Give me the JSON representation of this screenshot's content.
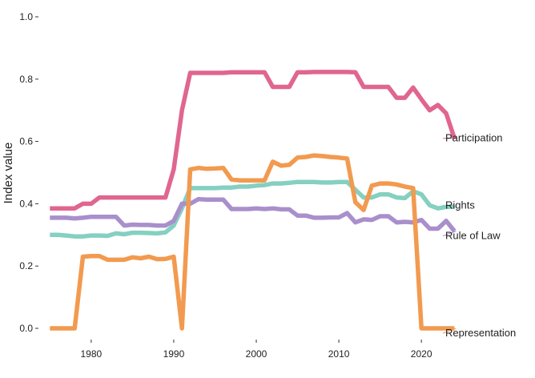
{
  "chart_data": {
    "type": "line",
    "title": "",
    "xlabel": "",
    "ylabel": "Index value",
    "xlim": [
      1974,
      2026
    ],
    "ylim": [
      0.0,
      1.0
    ],
    "x_ticks": [
      1980,
      1990,
      2000,
      2010,
      2020
    ],
    "y_ticks": [
      "0.0",
      "0.2",
      "0.4",
      "0.6",
      "0.8",
      "1.0"
    ],
    "grid": false,
    "legend": "direct labels at line ends (right)",
    "x": [
      1975,
      1976,
      1977,
      1978,
      1979,
      1980,
      1981,
      1982,
      1983,
      1984,
      1985,
      1986,
      1987,
      1988,
      1989,
      1990,
      1991,
      1992,
      1993,
      1994,
      1995,
      1996,
      1997,
      1998,
      1999,
      2000,
      2001,
      2002,
      2003,
      2004,
      2005,
      2006,
      2007,
      2008,
      2009,
      2010,
      2011,
      2012,
      2013,
      2014,
      2015,
      2016,
      2017,
      2018,
      2019,
      2020,
      2021,
      2022,
      2023,
      2024
    ],
    "series": [
      {
        "name": "Participation",
        "color": "#e0668f",
        "values": [
          0.385,
          0.385,
          0.385,
          0.385,
          0.4,
          0.4,
          0.42,
          0.42,
          0.42,
          0.42,
          0.42,
          0.42,
          0.42,
          0.42,
          0.42,
          0.51,
          0.7,
          0.82,
          0.82,
          0.82,
          0.82,
          0.82,
          0.822,
          0.822,
          0.822,
          0.822,
          0.822,
          0.775,
          0.775,
          0.775,
          0.822,
          0.822,
          0.823,
          0.823,
          0.823,
          0.823,
          0.823,
          0.822,
          0.775,
          0.775,
          0.775,
          0.775,
          0.74,
          0.74,
          0.773,
          0.735,
          0.7,
          0.717,
          0.69,
          0.61
        ]
      },
      {
        "name": "Rights",
        "color": "#85d0c0",
        "values": [
          0.3,
          0.3,
          0.298,
          0.295,
          0.295,
          0.298,
          0.298,
          0.297,
          0.305,
          0.302,
          0.307,
          0.307,
          0.306,
          0.305,
          0.308,
          0.33,
          0.385,
          0.45,
          0.45,
          0.45,
          0.45,
          0.452,
          0.452,
          0.455,
          0.455,
          0.458,
          0.46,
          0.465,
          0.465,
          0.467,
          0.47,
          0.47,
          0.47,
          0.468,
          0.468,
          0.47,
          0.47,
          0.445,
          0.42,
          0.42,
          0.43,
          0.43,
          0.42,
          0.418,
          0.44,
          0.43,
          0.395,
          0.385,
          0.39,
          0.39
        ]
      },
      {
        "name": "Rule of Law",
        "color": "#a98fcc",
        "values": [
          0.355,
          0.355,
          0.355,
          0.353,
          0.355,
          0.358,
          0.358,
          0.358,
          0.358,
          0.33,
          0.333,
          0.332,
          0.332,
          0.33,
          0.33,
          0.345,
          0.4,
          0.4,
          0.415,
          0.413,
          0.413,
          0.413,
          0.383,
          0.383,
          0.383,
          0.385,
          0.383,
          0.385,
          0.382,
          0.382,
          0.362,
          0.362,
          0.355,
          0.355,
          0.356,
          0.356,
          0.37,
          0.34,
          0.35,
          0.348,
          0.36,
          0.36,
          0.34,
          0.342,
          0.34,
          0.348,
          0.32,
          0.32,
          0.345,
          0.312
        ]
      },
      {
        "name": "Representation",
        "color": "#f29a4f",
        "values": [
          0.0,
          0.0,
          0.0,
          0.0,
          0.23,
          0.232,
          0.232,
          0.22,
          0.22,
          0.22,
          0.228,
          0.225,
          0.23,
          0.222,
          0.223,
          0.23,
          0.0,
          0.51,
          0.515,
          0.512,
          0.513,
          0.515,
          0.478,
          0.475,
          0.475,
          0.475,
          0.475,
          0.535,
          0.522,
          0.525,
          0.548,
          0.55,
          0.555,
          0.553,
          0.55,
          0.548,
          0.545,
          0.405,
          0.38,
          0.458,
          0.465,
          0.465,
          0.462,
          0.455,
          0.45,
          0.0,
          0.0,
          0.0,
          0.0,
          0.0
        ]
      }
    ]
  }
}
